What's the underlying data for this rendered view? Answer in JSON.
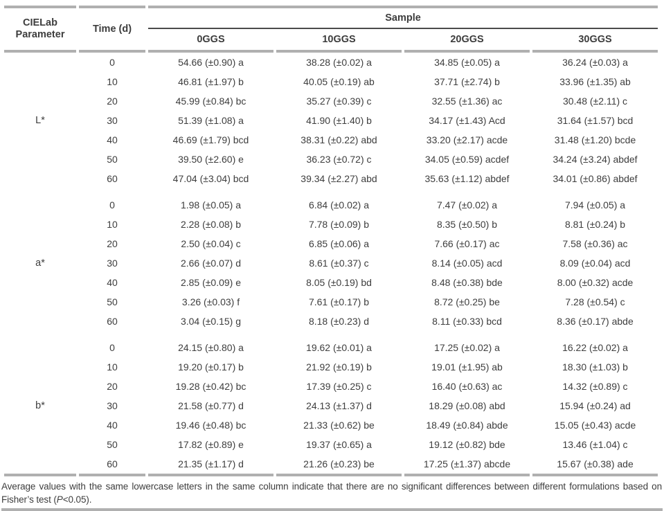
{
  "colors": {
    "text": "#3d3d3d",
    "rule_gray": "#b0b0b0",
    "rule_dark": "#4a4a4a"
  },
  "table": {
    "header": {
      "param_label": "CIELab Parameter",
      "time_label": "Time (d)",
      "group_label": "Sample",
      "sample_columns": [
        "0GGS",
        "10GGS",
        "20GGS",
        "30GGS"
      ]
    },
    "blocks": [
      {
        "parameter": "L*",
        "rows": [
          {
            "time": "0",
            "values": [
              "54.66 (±0.90) a",
              "38.28 (±0.02) a",
              "34.85 (±0.05) a",
              "36.24 (±0.03) a"
            ]
          },
          {
            "time": "10",
            "values": [
              "46.81 (±1.97) b",
              "40.05 (±0.19) ab",
              "37.71 (±2.74) b",
              "33.96 (±1.35) ab"
            ]
          },
          {
            "time": "20",
            "values": [
              "45.99 (±0.84) bc",
              "35.27 (±0.39) c",
              "32.55 (±1.36) ac",
              "30.48 (±2.11) c"
            ]
          },
          {
            "time": "30",
            "values": [
              "51.39 (±1.08) a",
              "41.90 (±1.40) b",
              "34.17 (±1.43) Acd",
              "31.64 (±1.57) bcd"
            ]
          },
          {
            "time": "40",
            "values": [
              "46.69 (±1.79) bcd",
              "38.31 (±0.22) abd",
              "33.20 (±2.17) acde",
              "31.48 (±1.20) bcde"
            ]
          },
          {
            "time": "50",
            "values": [
              "39.50 (±2.60) e",
              "36.23 (±0.72) c",
              "34.05 (±0.59) acdef",
              "34.24 (±3.24) abdef"
            ]
          },
          {
            "time": "60",
            "values": [
              "47.04 (±3.04) bcd",
              "39.34 (±2.27) abd",
              "35.63 (±1.12) abdef",
              "34.01 (±0.86) abdef"
            ]
          }
        ]
      },
      {
        "parameter": "a*",
        "rows": [
          {
            "time": "0",
            "values": [
              "1.98 (±0.05) a",
              "6.84 (±0.02) a",
              "7.47 (±0.02) a",
              "7.94 (±0.05) a"
            ]
          },
          {
            "time": "10",
            "values": [
              "2.28 (±0.08) b",
              "7.78 (±0.09) b",
              "8.35 (±0.50) b",
              "8.81 (±0.24) b"
            ]
          },
          {
            "time": "20",
            "values": [
              "2.50 (±0.04) c",
              "6.85 (±0.06) a",
              "7.66 (±0.17) ac",
              "7.58 (±0.36) ac"
            ]
          },
          {
            "time": "30",
            "values": [
              "2.66 (±0.07) d",
              "8.61 (±0.37) c",
              "8.14 (±0.05) acd",
              "8.09 (±0.04) acd"
            ]
          },
          {
            "time": "40",
            "values": [
              "2.85 (±0.09) e",
              "8.05 (±0.19) bd",
              "8.48 (±0.38) bde",
              "8.00 (±0.32) acde"
            ]
          },
          {
            "time": "50",
            "values": [
              "3.26 (±0.03) f",
              "7.61 (±0.17) b",
              "8.72 (±0.25) be",
              "7.28 (±0.54) c"
            ]
          },
          {
            "time": "60",
            "values": [
              "3.04 (±0.15) g",
              "8.18 (±0.23) d",
              "8.11 (±0.33) bcd",
              "8.36 (±0.17) abde"
            ]
          }
        ]
      },
      {
        "parameter": "b*",
        "rows": [
          {
            "time": "0",
            "values": [
              "24.15 (±0.80) a",
              "19.62 (±0.01) a",
              "17.25 (±0.02) a",
              "16.22 (±0.02) a"
            ]
          },
          {
            "time": "10",
            "values": [
              "19.20 (±0.17) b",
              "21.92 (±0.19) b",
              "19.01 (±1.95) ab",
              "18.30 (±1.03) b"
            ]
          },
          {
            "time": "20",
            "values": [
              "19.28 (±0.42) bc",
              "17.39 (±0.25) c",
              "16.40 (±0.63) ac",
              "14.32 (±0.89) c"
            ]
          },
          {
            "time": "30",
            "values": [
              "21.58 (±0.77) d",
              "24.13 (±1.37) d",
              "18.29 (±0.08) abd",
              "15.94 (±0.24) ad"
            ]
          },
          {
            "time": "40",
            "values": [
              "19.46 (±0.48) bc",
              "21.33 (±0.62) be",
              "18.49 (±0.84) abde",
              "15.05 (±0.43) acde"
            ]
          },
          {
            "time": "50",
            "values": [
              "17.82 (±0.89) e",
              "19.37 (±0.65) a",
              "19.12 (±0.82) bde",
              "13.46 (±1.04) c"
            ]
          },
          {
            "time": "60",
            "values": [
              "21.35 (±1.17) d",
              "21.26 (±0.23) be",
              "17.25 (±1.37) abcde",
              "15.67 (±0.38) ade"
            ]
          }
        ]
      }
    ],
    "footnote": {
      "before_p": "Average values with the same lowercase letters in the same column indicate that there are no significant differences between different formulations based on Fisher’s test (",
      "p": "P",
      "after_p": "<0.05)."
    }
  }
}
